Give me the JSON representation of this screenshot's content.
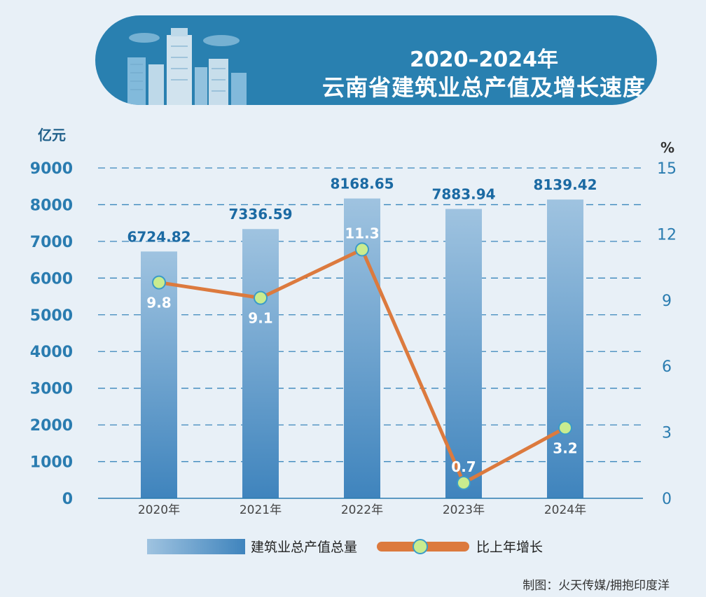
{
  "header": {
    "title_line1": "2020–2024年",
    "title_line2": "云南省建筑业总产值及增长速度"
  },
  "credit": "制图：火天传媒/拥抱印度洋",
  "colors": {
    "background": "#e8f0f7",
    "banner": "#2980b0",
    "bar_top": "#9fc3e0",
    "bar_bottom": "#3f84bd",
    "line": "#dc7a3e",
    "marker_fill": "#c9ec8f",
    "marker_stroke": "#3b9bc8",
    "tick_text": "#2a7cb0",
    "value_label": "#1b6aa3"
  },
  "chart_data": {
    "type": "bar",
    "categories": [
      "2020年",
      "2021年",
      "2022年",
      "2023年",
      "2024年"
    ],
    "series": [
      {
        "name": "建筑业总产值总量",
        "type": "bar",
        "axis": "left",
        "values": [
          6724.82,
          7336.59,
          8168.65,
          7883.94,
          8139.42
        ]
      },
      {
        "name": "比上年增长",
        "type": "line",
        "axis": "right",
        "values": [
          9.8,
          9.1,
          11.3,
          0.7,
          3.2
        ]
      }
    ],
    "value_labels": [
      "6724.82",
      "7336.59",
      "8168.65",
      "7883.94",
      "8139.42"
    ],
    "growth_labels": [
      "9.8",
      "9.1",
      "11.3",
      "0.7",
      "3.2"
    ],
    "ylabel_left": "亿元",
    "ylabel_right": "%",
    "ylim_left": [
      0,
      9000
    ],
    "ylim_right": [
      0,
      15
    ],
    "yticks_left": [
      "0",
      "1000",
      "2000",
      "3000",
      "4000",
      "5000",
      "6000",
      "7000",
      "8000",
      "9000"
    ],
    "yticks_right": [
      {
        "value": 0,
        "label": "0"
      },
      {
        "value": 3,
        "label": "3"
      },
      {
        "value": 6,
        "label": "6"
      },
      {
        "value": 9,
        "label": "9"
      },
      {
        "value": 12,
        "label": "12"
      },
      {
        "value": 15,
        "label": "15"
      }
    ],
    "grid": "dashed horizontal",
    "legend_position": "bottom"
  }
}
